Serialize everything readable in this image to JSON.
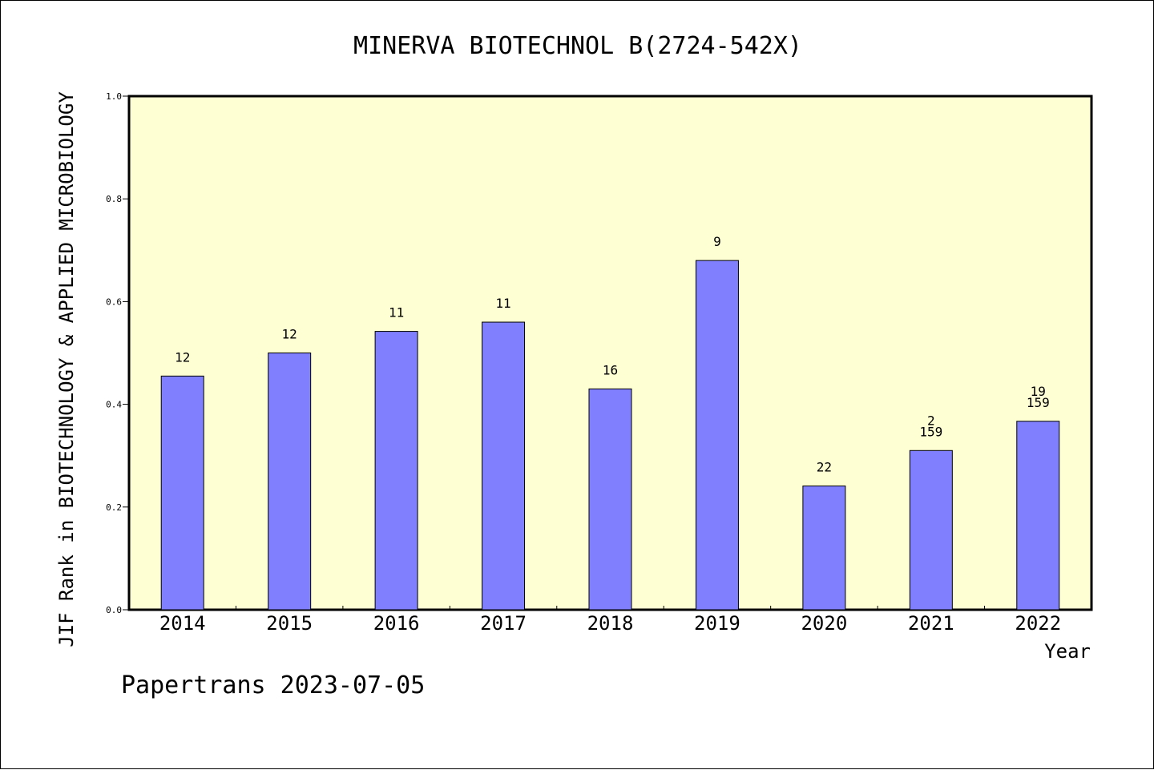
{
  "chart_data": {
    "type": "bar",
    "title": "MINERVA BIOTECHNOL B(2724-542X)",
    "xlabel": "Year",
    "ylabel": "JIF Rank in BIOTECHNOLOGY & APPLIED MICROBIOLOGY",
    "ylim": [
      0,
      1.0
    ],
    "yticks": [
      "0.0",
      "0.2",
      "0.4",
      "0.6",
      "0.8",
      "1.0"
    ],
    "categories": [
      "2014",
      "2015",
      "2016",
      "2017",
      "2018",
      "2019",
      "2020",
      "2021",
      "2022"
    ],
    "values": [
      0.455,
      0.5,
      0.542,
      0.56,
      0.43,
      0.68,
      0.241,
      0.31,
      0.367
    ],
    "bar_labels": [
      [
        "12"
      ],
      [
        "12"
      ],
      [
        "11"
      ],
      [
        "11"
      ],
      [
        "16"
      ],
      [
        "9"
      ],
      [
        "22"
      ],
      [
        "2",
        "159"
      ],
      [
        "19",
        "159"
      ]
    ],
    "grid": false,
    "colors": {
      "bar": "#8080ff",
      "plot_bg": "#ffffd4"
    }
  },
  "footer": "Papertrans 2023-07-05"
}
